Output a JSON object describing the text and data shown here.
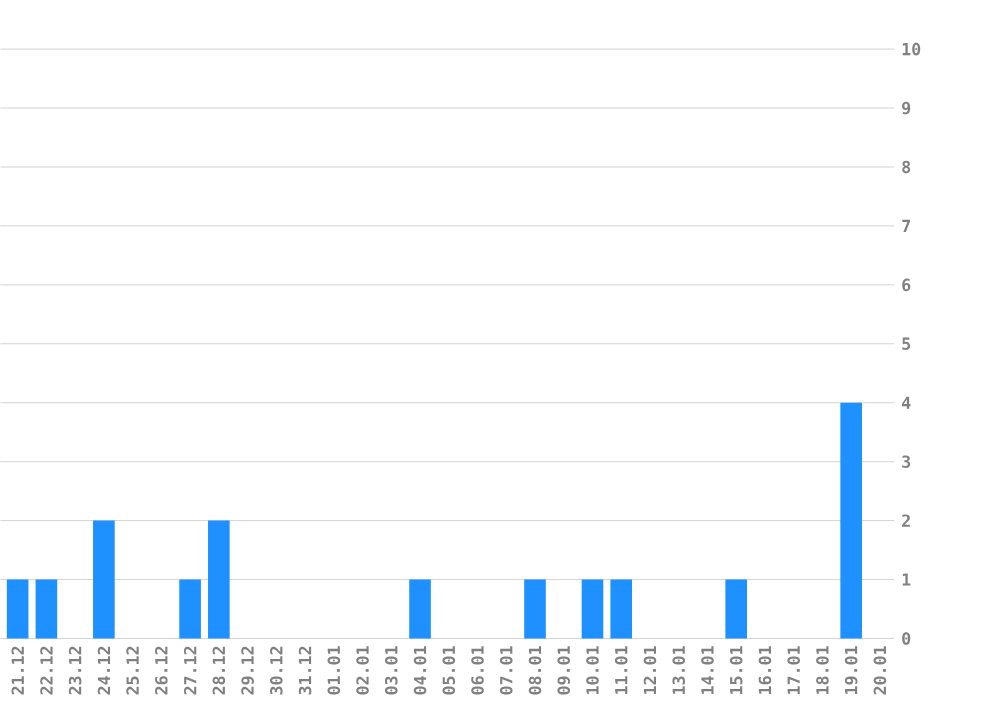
{
  "chart_data": {
    "type": "bar",
    "categories": [
      "21.12",
      "22.12",
      "23.12",
      "24.12",
      "25.12",
      "26.12",
      "27.12",
      "28.12",
      "29.12",
      "30.12",
      "31.12",
      "01.01",
      "02.01",
      "03.01",
      "04.01",
      "05.01",
      "06.01",
      "07.01",
      "08.01",
      "09.01",
      "10.01",
      "11.01",
      "12.01",
      "13.01",
      "14.01",
      "15.01",
      "16.01",
      "17.01",
      "18.01",
      "19.01",
      "20.01"
    ],
    "values": [
      1,
      1,
      0,
      2,
      0,
      0,
      1,
      2,
      0,
      0,
      0,
      0,
      0,
      0,
      1,
      0,
      0,
      0,
      1,
      0,
      1,
      1,
      0,
      0,
      0,
      1,
      0,
      0,
      0,
      4,
      0
    ],
    "color": "#1e90ff",
    "ylim": [
      0,
      10
    ],
    "yticks": [
      0,
      1,
      2,
      3,
      4,
      5,
      6,
      7,
      8,
      9,
      10
    ],
    "grid": "y"
  }
}
